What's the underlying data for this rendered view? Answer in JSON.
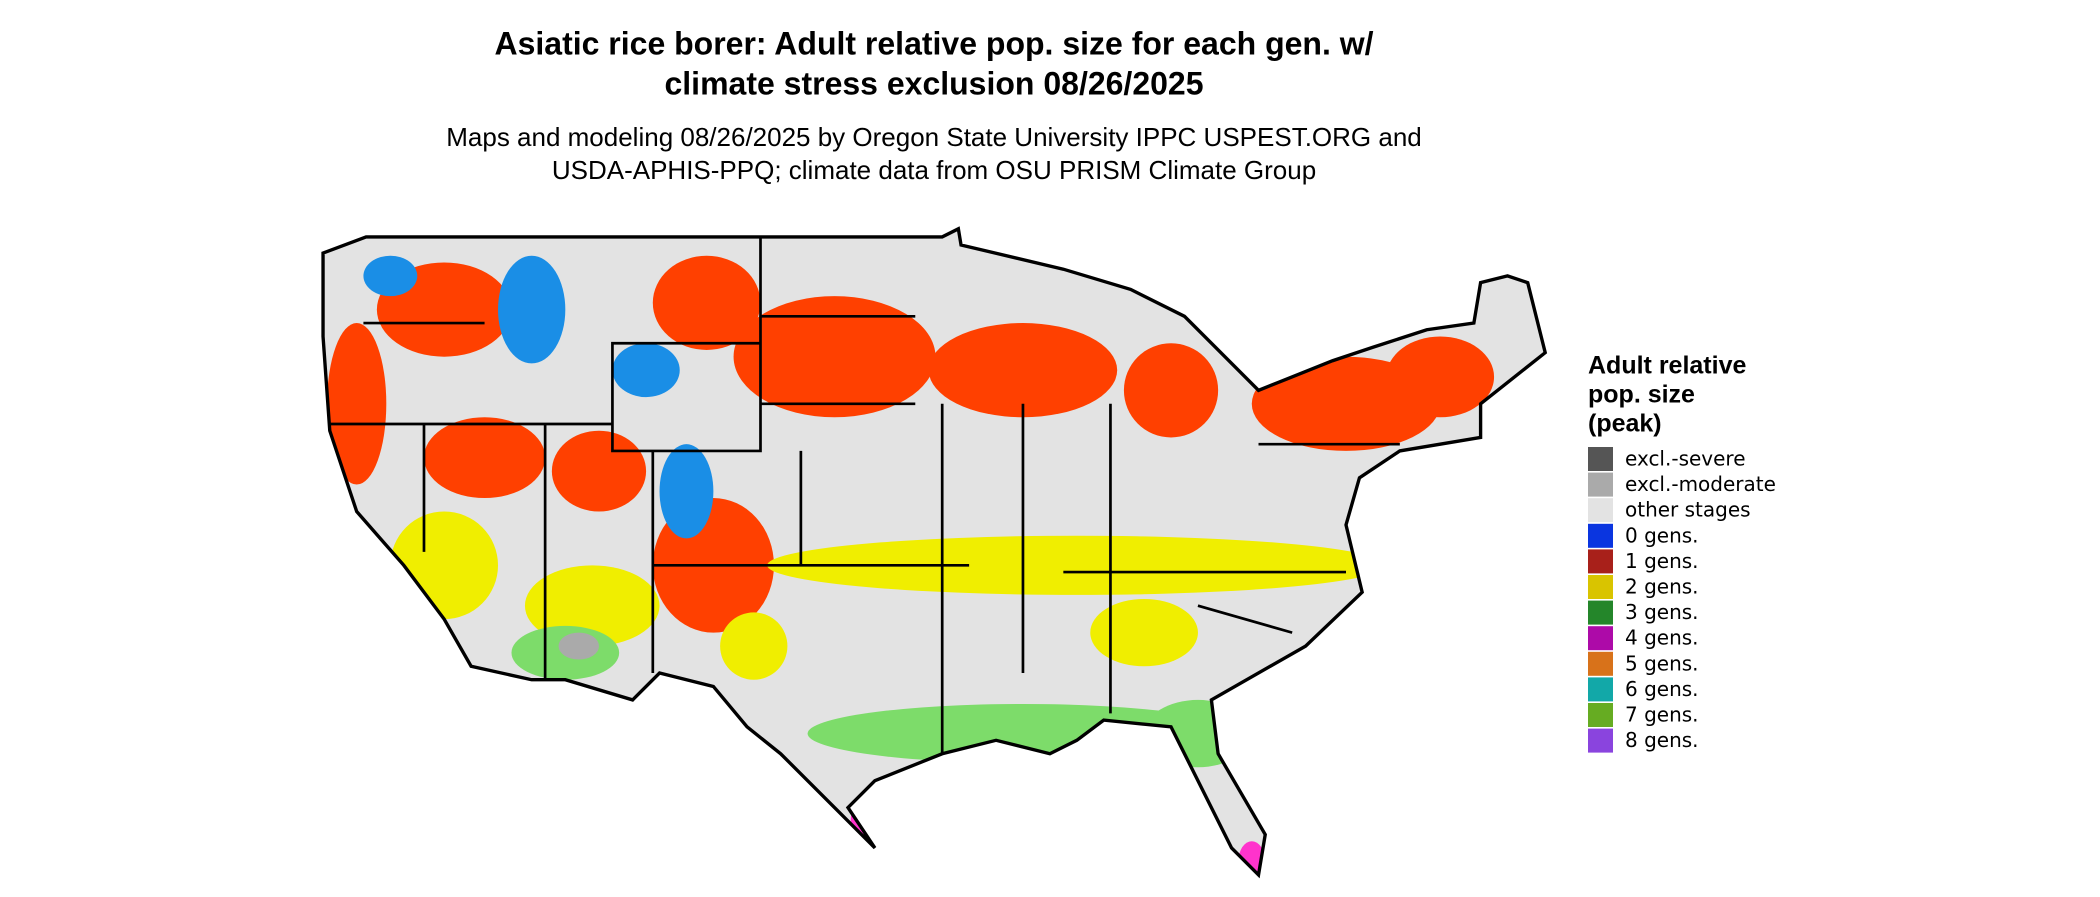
{
  "title": [
    "Asiatic rice borer: Adult relative pop. size for each gen. w/",
    "climate stress exclusion 08/26/2025"
  ],
  "subtitle": [
    "Maps and modeling 08/26/2025 by Oregon State University IPPC USPEST.ORG and",
    "USDA-APHIS-PPQ; climate data from OSU PRISM Climate Group"
  ],
  "legend": {
    "title": [
      "Adult relative",
      "pop. size",
      "(peak)"
    ],
    "items": [
      {
        "label": "excl.-severe",
        "color": "#555555"
      },
      {
        "label": "excl.-moderate",
        "color": "#aaaaaa"
      },
      {
        "label": "other stages",
        "color": "#e3e3e3"
      },
      {
        "label": "0 gens.",
        "color": "#0a35e0"
      },
      {
        "label": "1 gens.",
        "color": "#a8201a"
      },
      {
        "label": "2 gens.",
        "color": "#d9c400"
      },
      {
        "label": "3 gens.",
        "color": "#24862a"
      },
      {
        "label": "4 gens.",
        "color": "#ad0aa8"
      },
      {
        "label": "5 gens.",
        "color": "#d8721a"
      },
      {
        "label": "6 gens.",
        "color": "#12a8a8"
      },
      {
        "label": "7 gens.",
        "color": "#66ac22"
      },
      {
        "label": "8 gens.",
        "color": "#8a44de"
      }
    ]
  }
}
